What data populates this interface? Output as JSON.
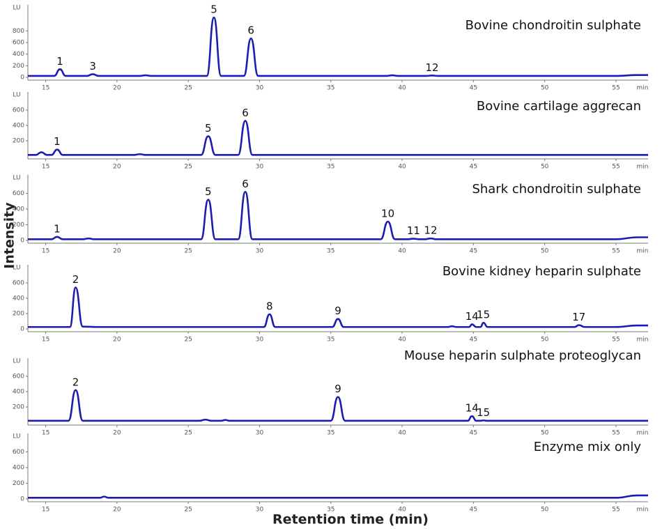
{
  "x_label": "Retention time (min)",
  "y_label": "Intensity",
  "chart_data": [
    {
      "type": "line",
      "title": "Bovine chondroitin sulphate",
      "x_unit": "min",
      "y_unit": "LU",
      "xlim": [
        13.75,
        57.25
      ],
      "ylim": [
        0,
        1200
      ],
      "xticks": [
        15,
        20,
        25,
        30,
        35,
        40,
        45,
        50,
        55
      ],
      "yticks": [
        0,
        200,
        400,
        600,
        800
      ],
      "x": [
        13.75,
        15.6,
        16,
        16.4,
        17.9,
        18.3,
        18.7,
        21.6,
        22,
        22.4,
        26.3,
        26.8,
        27.3,
        28.9,
        29.4,
        29.9,
        38.9,
        39.3,
        39.7,
        41.7,
        42.1,
        42.5,
        55,
        56.5,
        57.25
      ],
      "series": [
        {
          "color": "#1c1cb0",
          "values": [
            25,
            25,
            140,
            25,
            25,
            55,
            25,
            25,
            35,
            25,
            25,
            1030,
            25,
            25,
            670,
            25,
            25,
            35,
            25,
            25,
            32,
            25,
            25,
            40,
            40
          ],
          "point_labels": [
            null,
            null,
            "1",
            null,
            null,
            "3",
            null,
            null,
            null,
            null,
            null,
            "5",
            null,
            null,
            "6",
            null,
            null,
            null,
            null,
            null,
            "12",
            null,
            null,
            null,
            null
          ]
        }
      ]
    },
    {
      "type": "line",
      "title": "Bovine cartilage aggrecan",
      "x_unit": "min",
      "y_unit": "LU",
      "xlim": [
        13.75,
        57.25
      ],
      "ylim": [
        0,
        800
      ],
      "xticks": [
        15,
        20,
        25,
        30,
        35,
        40,
        45,
        50,
        55
      ],
      "yticks": [
        200,
        400,
        600
      ],
      "x": [
        13.75,
        14.3,
        14.7,
        15.1,
        15.4,
        15.8,
        16.2,
        21.2,
        21.6,
        22,
        25.9,
        26.4,
        26.9,
        28.5,
        29,
        29.5,
        57.25
      ],
      "series": [
        {
          "color": "#1c1cb0",
          "values": [
            15,
            15,
            50,
            15,
            15,
            85,
            15,
            15,
            25,
            15,
            15,
            260,
            15,
            15,
            460,
            15,
            15
          ],
          "point_labels": [
            null,
            null,
            null,
            null,
            null,
            "1",
            null,
            null,
            null,
            null,
            null,
            "5",
            null,
            null,
            "6",
            null,
            null
          ]
        }
      ]
    },
    {
      "type": "line",
      "title": "Shark chondroitin sulphate",
      "x_unit": "min",
      "y_unit": "LU",
      "xlim": [
        13.75,
        57.25
      ],
      "ylim": [
        0,
        800
      ],
      "xticks": [
        15,
        20,
        25,
        30,
        35,
        40,
        45,
        50,
        55
      ],
      "yticks": [
        0,
        200,
        400,
        600
      ],
      "x": [
        13.75,
        15.4,
        15.8,
        16.2,
        17.6,
        18,
        18.4,
        25.9,
        26.4,
        26.9,
        28.5,
        29,
        29.5,
        38.5,
        39,
        39.5,
        40.4,
        40.8,
        41.2,
        41.6,
        42,
        42.4,
        55,
        56.5,
        57.25
      ],
      "series": [
        {
          "color": "#1c1cb0",
          "values": [
            15,
            15,
            45,
            15,
            15,
            25,
            15,
            15,
            520,
            15,
            15,
            620,
            15,
            15,
            240,
            15,
            15,
            22,
            15,
            15,
            25,
            15,
            15,
            40,
            40
          ],
          "point_labels": [
            null,
            null,
            "1",
            null,
            null,
            null,
            null,
            null,
            "5",
            null,
            null,
            "6",
            null,
            null,
            "10",
            null,
            null,
            "11",
            null,
            null,
            "12",
            null,
            null,
            null,
            null
          ]
        }
      ]
    },
    {
      "type": "line",
      "title": "Bovine kidney heparin sulphate",
      "x_unit": "min",
      "y_unit": "LU",
      "xlim": [
        13.75,
        57.25
      ],
      "ylim": [
        0,
        800
      ],
      "xticks": [
        15,
        20,
        25,
        30,
        35,
        40,
        45,
        50,
        55
      ],
      "yticks": [
        0,
        200,
        400,
        600
      ],
      "x": [
        13.75,
        16.7,
        17.1,
        17.6,
        18.6,
        30.3,
        30.7,
        31.1,
        35.1,
        35.5,
        35.9,
        43.2,
        43.5,
        43.8,
        44.7,
        44.9,
        45.2,
        45.5,
        45.7,
        46,
        52.1,
        52.4,
        52.8,
        55,
        56.5,
        57.25
      ],
      "series": [
        {
          "color": "#1c1cb0",
          "values": [
            25,
            25,
            540,
            30,
            25,
            25,
            190,
            25,
            25,
            130,
            25,
            25,
            35,
            25,
            25,
            60,
            25,
            25,
            80,
            25,
            25,
            50,
            25,
            25,
            45,
            45
          ],
          "point_labels": [
            null,
            null,
            "2",
            null,
            null,
            null,
            "8",
            null,
            null,
            "9",
            null,
            null,
            null,
            null,
            null,
            "14",
            null,
            null,
            "15",
            null,
            null,
            "17",
            null,
            null,
            null,
            null
          ]
        }
      ]
    },
    {
      "type": "line",
      "title": "Mouse heparin sulphate proteoglycan",
      "x_unit": "min",
      "y_unit": "LU",
      "xlim": [
        13.75,
        57.25
      ],
      "ylim": [
        0,
        800
      ],
      "xticks": [
        15,
        20,
        25,
        30,
        35,
        40,
        45,
        50,
        55
      ],
      "yticks": [
        200,
        400,
        600
      ],
      "x": [
        13.75,
        16.6,
        17.1,
        17.6,
        25.8,
        26.2,
        26.6,
        27.3,
        27.6,
        27.9,
        35,
        35.5,
        36,
        44.6,
        44.9,
        45.2,
        45.5,
        45.7,
        45.9,
        57.25
      ],
      "series": [
        {
          "color": "#1c1cb0",
          "values": [
            20,
            20,
            420,
            20,
            20,
            35,
            20,
            20,
            30,
            20,
            20,
            330,
            20,
            20,
            80,
            20,
            20,
            25,
            20,
            20
          ],
          "point_labels": [
            null,
            null,
            "2",
            null,
            null,
            null,
            null,
            null,
            null,
            null,
            null,
            "9",
            null,
            null,
            "14",
            null,
            null,
            "15",
            null,
            null
          ]
        }
      ]
    },
    {
      "type": "line",
      "title": "Enzyme mix only",
      "x_unit": "min",
      "y_unit": "LU",
      "xlim": [
        13.75,
        57.25
      ],
      "ylim": [
        0,
        800
      ],
      "xticks": [
        15,
        20,
        25,
        30,
        35,
        40,
        45,
        50,
        55
      ],
      "yticks": [
        0,
        200,
        400,
        600
      ],
      "x": [
        13.75,
        18.8,
        19.1,
        19.4,
        55,
        56.5,
        57.25
      ],
      "series": [
        {
          "color": "#1c1cb0",
          "values": [
            15,
            15,
            30,
            15,
            15,
            45,
            45
          ],
          "point_labels": [
            null,
            null,
            null,
            null,
            null,
            null,
            null
          ]
        }
      ]
    }
  ]
}
